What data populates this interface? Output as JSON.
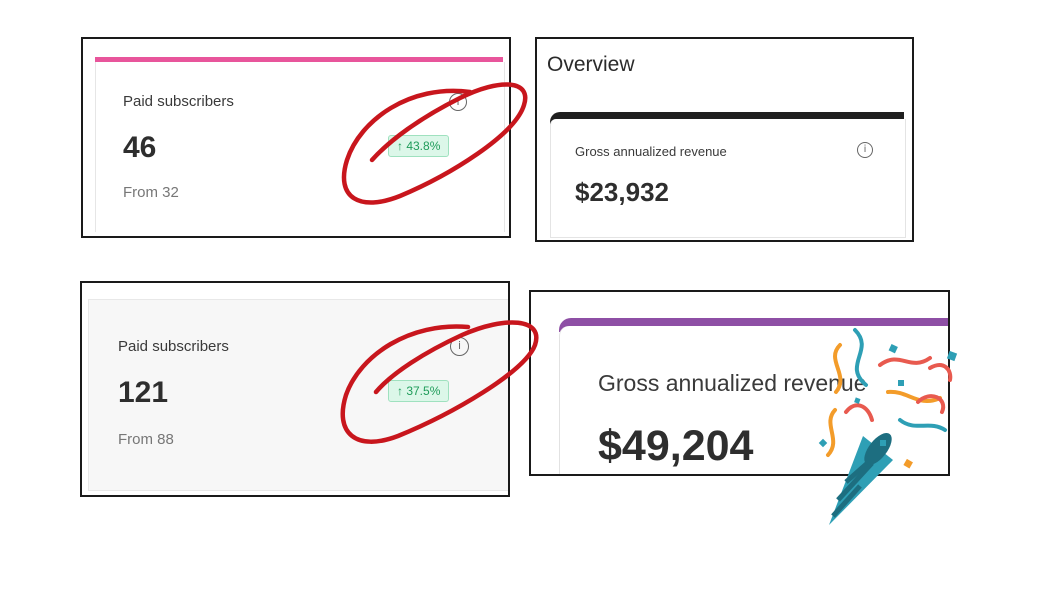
{
  "top_left": {
    "label": "Paid subscribers",
    "value": "46",
    "from": "From 32",
    "change": "↑ 43.8%",
    "accent": "#e8559b"
  },
  "top_right": {
    "header": "Overview",
    "label": "Gross annualized revenue",
    "value": "$23,932",
    "accent": "#1f1f1f"
  },
  "bottom_left": {
    "label": "Paid subscribers",
    "value": "121",
    "from": "From 88",
    "change": "↑ 37.5%"
  },
  "bottom_right": {
    "label": "Gross annualized revenue",
    "value": "$49,204",
    "accent": "#8e4fa5"
  },
  "colors": {
    "badge_bg": "#dcf7e9",
    "badge_text": "#1f9c5a",
    "annotation_red": "#c8161d"
  },
  "icons": [
    "info-icon",
    "party-popper-icon",
    "hand-drawn-circle"
  ]
}
